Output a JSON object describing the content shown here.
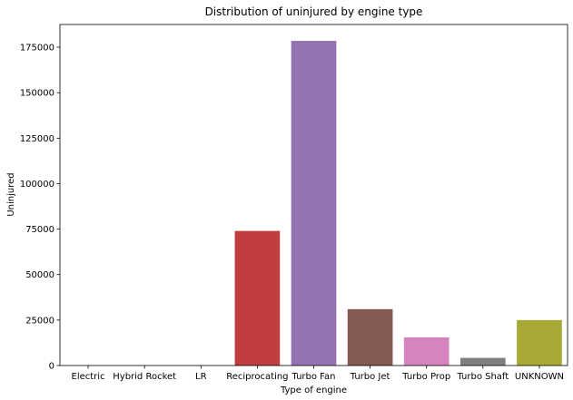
{
  "chart_data": {
    "type": "bar",
    "title": "Distribution of uninjured by engine type",
    "xlabel": "Type of engine",
    "ylabel": "Uninjured",
    "categories": [
      "Electric",
      "Hybrid Rocket",
      "LR",
      "Reciprocating",
      "Turbo Fan",
      "Turbo Jet",
      "Turbo Prop",
      "Turbo Shaft",
      "UNKNOWN"
    ],
    "values": [
      0,
      0,
      0,
      74000,
      178500,
      31000,
      15500,
      4200,
      25000
    ],
    "colors": [
      "#3274a1",
      "#e1812c",
      "#3a923a",
      "#c03d3e",
      "#9372b2",
      "#845b53",
      "#d684bd",
      "#7f7f7f",
      "#a9aa35"
    ],
    "yticks": [
      0,
      25000,
      50000,
      75000,
      100000,
      125000,
      150000,
      175000
    ],
    "ylim": [
      0,
      187500
    ],
    "grid": false,
    "legend": false
  }
}
